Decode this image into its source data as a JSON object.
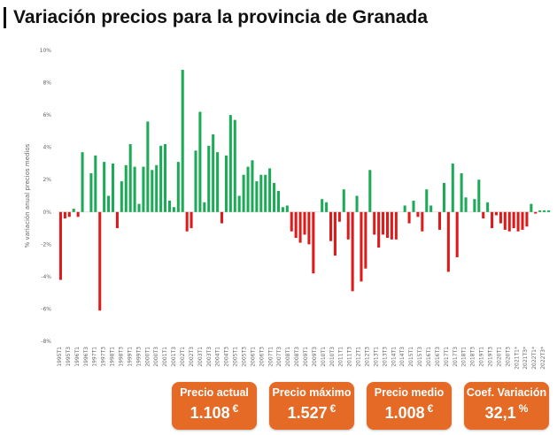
{
  "title": "Variación precios para la provincia de Granada",
  "colors": {
    "positive": "#1daa57",
    "negative": "#dd1b1b",
    "card": "#e46a25"
  },
  "cards": [
    {
      "label": "Precio actual",
      "value": "1.108",
      "unit": "€"
    },
    {
      "label": "Precio máximo",
      "value": "1.527",
      "unit": "€"
    },
    {
      "label": "Precio medio",
      "value": "1.008",
      "unit": "€"
    },
    {
      "label": "Coef. Variación",
      "value": "32,1",
      "unit": "%"
    }
  ],
  "chart_data": {
    "type": "bar",
    "ylabel": "% variación anual precios medios",
    "ylim": [
      -8,
      10
    ],
    "yticks": [
      "-8%",
      "-6%",
      "-4%",
      "-2%",
      "0%",
      "2%",
      "4%",
      "6%",
      "8%",
      "10%"
    ],
    "grid": false,
    "xtick_labels": [
      "1995T1",
      "1995T3",
      "1996T1",
      "1996T3",
      "1997T1",
      "1997T3",
      "1998T1",
      "1998T3",
      "1999T1",
      "1999T3",
      "2000T1",
      "2000T3",
      "2001T1",
      "2001T3",
      "2002T1",
      "2002T3",
      "2003T1",
      "2003T3",
      "2004T1",
      "2004T3",
      "2005T1",
      "2005T3",
      "2006T1",
      "2006T3",
      "2007T1",
      "2007T3",
      "2008T1",
      "2008T3",
      "2009T1",
      "2009T3",
      "2010T1",
      "2010T3",
      "2011T1",
      "2011T3",
      "2012T1",
      "2012T3",
      "2013T1",
      "2013T3",
      "2014T1",
      "2014T3",
      "2015T1",
      "2015T3",
      "2016T1",
      "2016T3",
      "2017T1",
      "2017T3",
      "2018T1",
      "2018T3",
      "2019T1",
      "2019T3",
      "2020T1",
      "2020T3",
      "2021T1*",
      "2021T3*",
      "2022T1*",
      "2022T3*"
    ],
    "values": [
      -4.2,
      -0.4,
      -0.3,
      0.2,
      -0.3,
      3.7,
      0,
      2.4,
      3.5,
      -6.1,
      3.1,
      1.0,
      3.0,
      -1.0,
      1.9,
      2.9,
      4.2,
      2.8,
      0.5,
      2.8,
      5.6,
      2.6,
      2.9,
      4.1,
      4.2,
      0.7,
      0.3,
      3.1,
      8.8,
      -1.2,
      -1.0,
      3.8,
      6.2,
      0.6,
      4.1,
      4.8,
      3.7,
      -0.7,
      3.5,
      6.0,
      5.7,
      1.0,
      2.3,
      2.8,
      3.2,
      1.9,
      2.3,
      2.3,
      2.7,
      1.8,
      1.3,
      0.3,
      0.4,
      -1.2,
      -1.6,
      -1.9,
      -1.4,
      -2.0,
      -3.8,
      0,
      0.8,
      0.6,
      -1.8,
      -2.7,
      -0.6,
      1.4,
      -1.7,
      -4.9,
      1.0,
      -4.3,
      -3.5,
      2.6,
      -1.4,
      -2.2,
      -1.4,
      -1.6,
      -1.7,
      -1.7,
      0,
      0.4,
      -0.7,
      0.7,
      -0.3,
      -1.2,
      1.4,
      0.4,
      0,
      -1.1,
      1.8,
      -3.7,
      3.0,
      -2.8,
      2.4,
      0.9,
      0,
      0.8,
      2.0,
      -0.4,
      0.6,
      -1.0,
      -0.2,
      -0.7,
      -1.1,
      -1.2,
      -1.0,
      -1.2,
      -1.1,
      -0.9,
      0.5,
      -0.1,
      0.1,
      0.1,
      0.1
    ]
  }
}
